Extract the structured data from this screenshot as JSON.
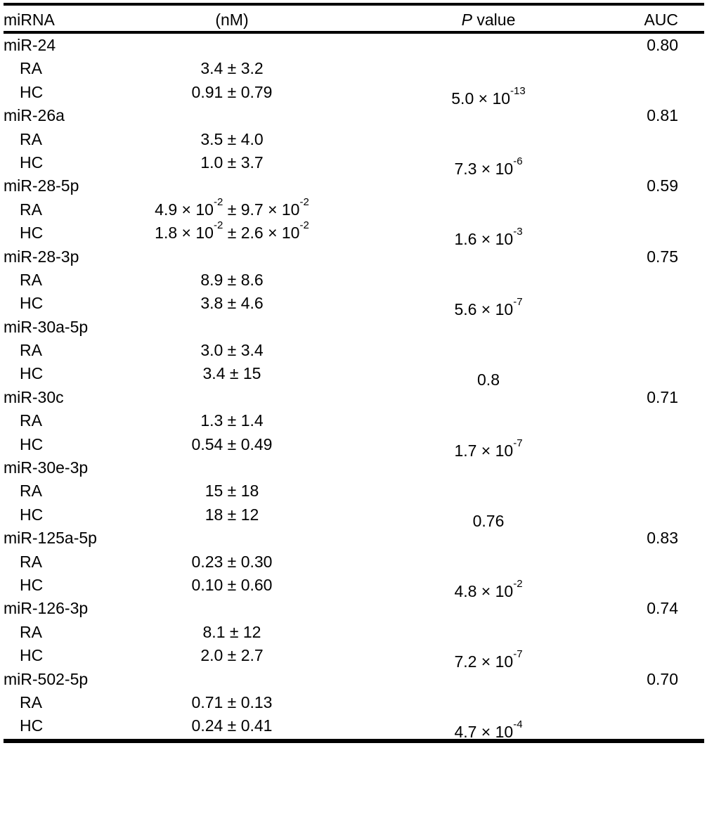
{
  "header": {
    "mirna": "miRNA",
    "conc": "(nM)",
    "p_italic": "P",
    "p_rest": " value",
    "auc": "AUC"
  },
  "groups": [
    {
      "name": "miR-24",
      "auc": "0.80",
      "ra": [
        {
          "t": "3.4 ± 3.2"
        }
      ],
      "hc": [
        {
          "t": "0.91 ± 0.79"
        }
      ],
      "p": [
        {
          "t": "5.0 × 10"
        },
        {
          "sup": "-13"
        }
      ]
    },
    {
      "name": "miR-26a",
      "auc": "0.81",
      "ra": [
        {
          "t": "3.5 ± 4.0"
        }
      ],
      "hc": [
        {
          "t": "1.0 ± 3.7"
        }
      ],
      "p": [
        {
          "t": "7.3 × 10"
        },
        {
          "sup": "-6"
        }
      ]
    },
    {
      "name": "miR-28-5p",
      "auc": "0.59",
      "ra": [
        {
          "t": "4.9 × 10"
        },
        {
          "sup": "-2"
        },
        {
          "t": " ± 9.7 × 10"
        },
        {
          "sup": "-2"
        }
      ],
      "hc": [
        {
          "t": "1.8 × 10"
        },
        {
          "sup": "-2"
        },
        {
          "t": " ± 2.6 × 10"
        },
        {
          "sup": "-2"
        }
      ],
      "p": [
        {
          "t": "1.6 × 10"
        },
        {
          "sup": "-3"
        }
      ]
    },
    {
      "name": "miR-28-3p",
      "auc": "0.75",
      "ra": [
        {
          "t": "8.9 ± 8.6"
        }
      ],
      "hc": [
        {
          "t": "3.8 ± 4.6"
        }
      ],
      "p": [
        {
          "t": "5.6 × 10"
        },
        {
          "sup": "-7"
        }
      ]
    },
    {
      "name": "miR-30a-5p",
      "auc": "",
      "ra": [
        {
          "t": "3.0 ± 3.4"
        }
      ],
      "hc": [
        {
          "t": "3.4 ± 15"
        }
      ],
      "p": [
        {
          "t": "0.8"
        }
      ]
    },
    {
      "name": "miR-30c",
      "auc": "0.71",
      "ra": [
        {
          "t": "1.3 ± 1.4"
        }
      ],
      "hc": [
        {
          "t": "0.54 ± 0.49"
        }
      ],
      "p": [
        {
          "t": "1.7 × 10"
        },
        {
          "sup": "-7"
        }
      ]
    },
    {
      "name": "miR-30e-3p",
      "auc": "",
      "ra": [
        {
          "t": "15 ± 18"
        }
      ],
      "hc": [
        {
          "t": "18 ± 12"
        }
      ],
      "p": [
        {
          "t": "0.76"
        }
      ]
    },
    {
      "name": "miR-125a-5p",
      "auc": "0.83",
      "ra": [
        {
          "t": "0.23 ± 0.30"
        }
      ],
      "hc": [
        {
          "t": "0.10 ± 0.60"
        }
      ],
      "p": [
        {
          "t": "4.8 × 10"
        },
        {
          "sup": "-2"
        }
      ]
    },
    {
      "name": "miR-126-3p",
      "auc": "0.74",
      "ra": [
        {
          "t": "8.1 ± 12"
        }
      ],
      "hc": [
        {
          "t": "2.0 ± 2.7"
        }
      ],
      "p": [
        {
          "t": "7.2 × 10"
        },
        {
          "sup": "-7"
        }
      ]
    },
    {
      "name": "miR-502-5p",
      "auc": "0.70",
      "ra": [
        {
          "t": "0.71 ± 0.13"
        }
      ],
      "hc": [
        {
          "t": "0.24 ± 0.41"
        }
      ],
      "p": [
        {
          "t": "4.7 × 10"
        },
        {
          "sup": "-4"
        }
      ]
    }
  ],
  "labels": {
    "ra": "RA",
    "hc": "HC"
  }
}
